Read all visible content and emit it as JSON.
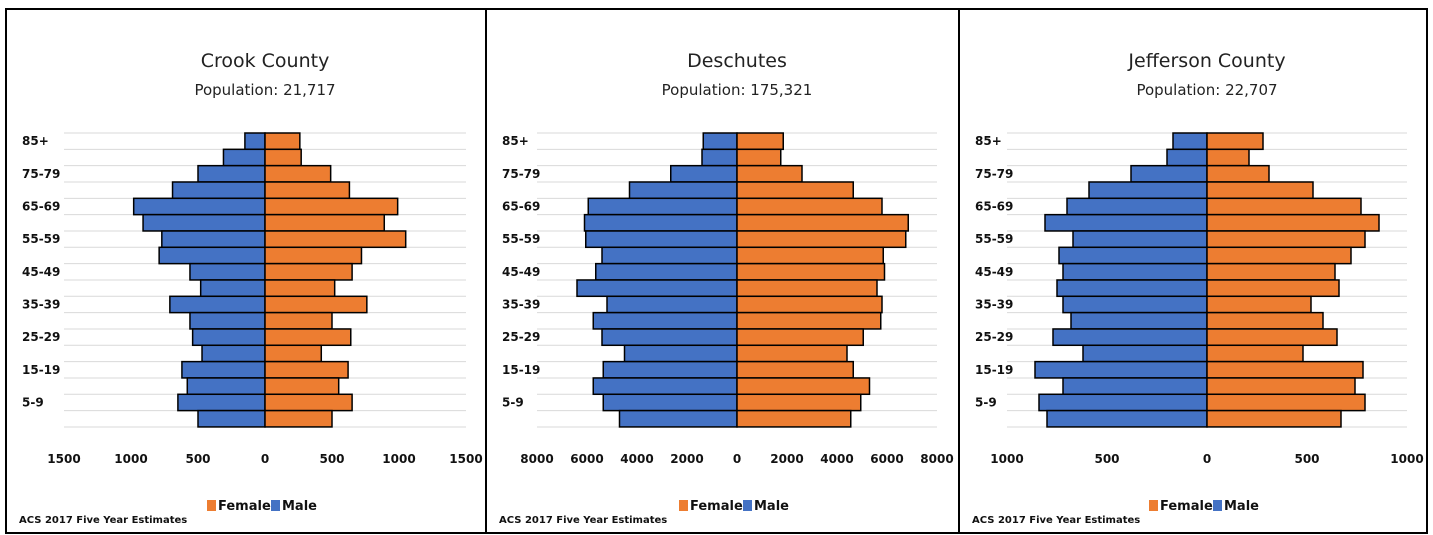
{
  "colors": {
    "female": "#ED7D31",
    "male": "#4472C4",
    "grid": "#D9D9D9",
    "outline": "#000000"
  },
  "legend": {
    "female": "Female",
    "male": "Male"
  },
  "source_note": "ACS 2017 Five Year Estimates",
  "chart_data": [
    {
      "type": "bar",
      "subtype": "population-pyramid",
      "title": "Crook County",
      "subtitle": "Population: 21,717",
      "categories": [
        "85+",
        "80-84",
        "75-79",
        "70-74",
        "65-69",
        "60-64",
        "55-59",
        "50-54",
        "45-49",
        "40-44",
        "35-39",
        "30-34",
        "25-29",
        "20-24",
        "15-19",
        "10-14",
        "5-9",
        "0-4"
      ],
      "category_labels_shown": [
        "85+",
        "75-79",
        "65-69",
        "55-59",
        "45-49",
        "35-39",
        "25-29",
        "15-19",
        "5-9"
      ],
      "xlim": [
        -1500,
        1500
      ],
      "x_ticks": [
        -1500,
        -1000,
        -500,
        0,
        500,
        1000,
        1500
      ],
      "x_tick_labels": [
        "1500",
        "1000",
        "500",
        "0",
        "500",
        "1000",
        "1500"
      ],
      "series": [
        {
          "name": "Male",
          "values": [
            150,
            310,
            500,
            690,
            980,
            910,
            770,
            790,
            560,
            480,
            710,
            560,
            540,
            470,
            620,
            580,
            650,
            500
          ]
        },
        {
          "name": "Female",
          "values": [
            260,
            270,
            490,
            630,
            990,
            890,
            1050,
            720,
            650,
            520,
            760,
            500,
            640,
            420,
            620,
            550,
            650,
            500
          ]
        }
      ]
    },
    {
      "type": "bar",
      "subtype": "population-pyramid",
      "title": "Deschutes",
      "subtitle": "Population: 175,321",
      "categories": [
        "85+",
        "80-84",
        "75-79",
        "70-74",
        "65-69",
        "60-64",
        "55-59",
        "50-54",
        "45-49",
        "40-44",
        "35-39",
        "30-34",
        "25-29",
        "20-24",
        "15-19",
        "10-14",
        "5-9",
        "0-4"
      ],
      "category_labels_shown": [
        "85+",
        "75-79",
        "65-69",
        "55-59",
        "45-49",
        "35-39",
        "25-29",
        "15-19",
        "5-9"
      ],
      "xlim": [
        -8000,
        8000
      ],
      "x_ticks": [
        -8000,
        -6000,
        -4000,
        -2000,
        0,
        2000,
        4000,
        6000,
        8000
      ],
      "x_tick_labels": [
        "8000",
        "6000",
        "4000",
        "2000",
        "0",
        "2000",
        "4000",
        "6000",
        "8000"
      ],
      "series": [
        {
          "name": "Male",
          "values": [
            1350,
            1400,
            2650,
            4300,
            5950,
            6100,
            6050,
            5400,
            5650,
            6400,
            5200,
            5750,
            5400,
            4500,
            5350,
            5750,
            5350,
            4700
          ]
        },
        {
          "name": "Female",
          "values": [
            1850,
            1750,
            2600,
            4650,
            5800,
            6850,
            6750,
            5850,
            5900,
            5600,
            5800,
            5750,
            5050,
            4400,
            4650,
            5300,
            4950,
            4550
          ]
        }
      ]
    },
    {
      "type": "bar",
      "subtype": "population-pyramid",
      "title": "Jefferson County",
      "subtitle": "Population: 22,707",
      "categories": [
        "85+",
        "80-84",
        "75-79",
        "70-74",
        "65-69",
        "60-64",
        "55-59",
        "50-54",
        "45-49",
        "40-44",
        "35-39",
        "30-34",
        "25-29",
        "20-24",
        "15-19",
        "10-14",
        "5-9",
        "0-4"
      ],
      "category_labels_shown": [
        "85+",
        "75-79",
        "65-69",
        "55-59",
        "45-49",
        "35-39",
        "25-29",
        "15-19",
        "5-9"
      ],
      "xlim": [
        -1000,
        1000
      ],
      "x_ticks": [
        -1000,
        -500,
        0,
        500,
        1000
      ],
      "x_tick_labels": [
        "1000",
        "500",
        "0",
        "500",
        "1000"
      ],
      "series": [
        {
          "name": "Male",
          "values": [
            170,
            200,
            380,
            590,
            700,
            810,
            670,
            740,
            720,
            750,
            720,
            680,
            770,
            620,
            860,
            720,
            840,
            800
          ]
        },
        {
          "name": "Female",
          "values": [
            280,
            210,
            310,
            530,
            770,
            860,
            790,
            720,
            640,
            660,
            520,
            580,
            650,
            480,
            780,
            740,
            790,
            670
          ]
        }
      ]
    }
  ]
}
